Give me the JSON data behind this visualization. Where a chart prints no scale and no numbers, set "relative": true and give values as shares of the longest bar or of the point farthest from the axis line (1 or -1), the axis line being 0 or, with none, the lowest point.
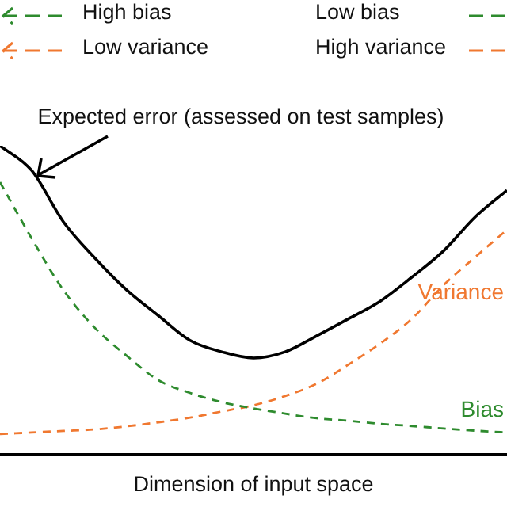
{
  "chart_data": {
    "type": "line",
    "relative": true,
    "xlabel": "Dimension of input space",
    "categories": [
      null,
      null,
      null,
      null,
      null,
      null,
      null,
      null,
      null,
      null,
      null,
      null,
      null,
      null,
      null,
      null,
      null
    ],
    "legend": false,
    "grid": false,
    "marker": "none",
    "annotations": [
      "High bias",
      "Low variance",
      "Low bias",
      "High variance",
      "Expected error (assessed on test samples)"
    ],
    "series": [
      {
        "color": "#000000",
        "line_style": "solid",
        "values": [
          1.0,
          0.92,
          0.754,
          0.636,
          0.533,
          0.45,
          0.37,
          0.333,
          0.313,
          0.333,
          0.385,
          0.44,
          0.497,
          0.575,
          0.66,
          0.77,
          0.856
        ]
      },
      {
        "name": "Bias",
        "color": "#2e8b2e",
        "line_style": "dashed",
        "values": [
          0.882,
          0.7,
          0.533,
          0.41,
          0.32,
          0.241,
          0.2,
          0.17,
          0.15,
          0.133,
          0.118,
          0.11,
          0.1,
          0.093,
          0.085,
          0.078,
          0.072
        ]
      },
      {
        "name": "Variance",
        "color": "#f07830",
        "line_style": "dashed",
        "values": [
          0.067,
          0.072,
          0.077,
          0.082,
          0.092,
          0.105,
          0.12,
          0.14,
          0.16,
          0.19,
          0.23,
          0.292,
          0.36,
          0.44,
          0.549,
          0.64,
          0.728
        ]
      }
    ]
  }
}
